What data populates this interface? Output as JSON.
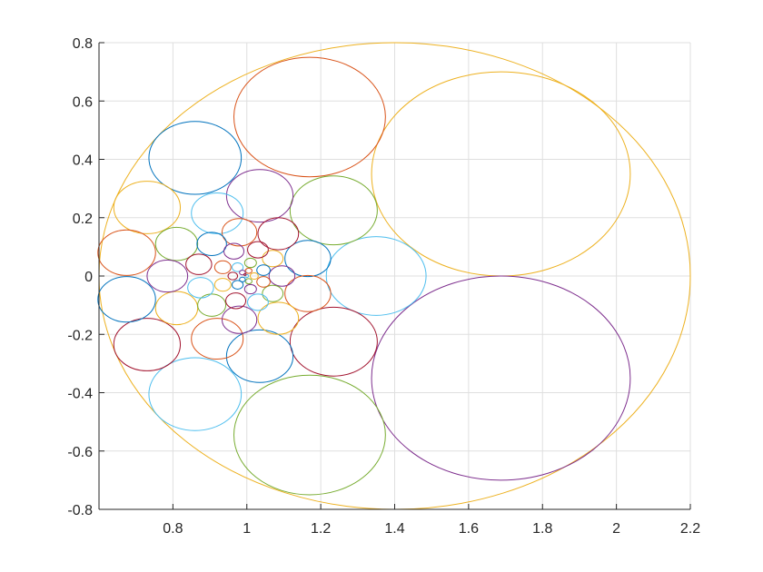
{
  "chart_data": {
    "type": "scatter",
    "title": "",
    "xlabel": "",
    "ylabel": "",
    "xlim": [
      0.6,
      2.2
    ],
    "ylim": [
      -0.8,
      0.8
    ],
    "grid": true,
    "x_ticks": [
      0.8,
      1,
      1.2,
      1.4,
      1.6,
      1.8,
      2,
      2.2
    ],
    "x_tick_labels": [
      "0.8",
      "1",
      "1.2",
      "1.4",
      "1.6",
      "1.8",
      "2",
      "2.2"
    ],
    "y_ticks": [
      -0.8,
      -0.6,
      -0.4,
      -0.2,
      0,
      0.2,
      0.4,
      0.6,
      0.8
    ],
    "y_tick_labels": [
      "-0.8",
      "-0.6",
      "-0.4",
      "-0.2",
      "0",
      "0.2",
      "0.4",
      "0.6",
      "0.8"
    ],
    "palette": [
      "#0072BD",
      "#D95319",
      "#EDB120",
      "#7E2F8E",
      "#77AC30",
      "#4DBEEE",
      "#A2142F"
    ],
    "circles": [
      {
        "cx": 1.4,
        "cy": 0.0,
        "r": 0.8,
        "color": "#EDB120"
      },
      {
        "cx": 1.6875,
        "cy": 0.35,
        "r": 0.35,
        "color": "#EDB120"
      },
      {
        "cx": 1.6875,
        "cy": -0.35,
        "r": 0.35,
        "color": "#7E2F8E"
      },
      {
        "cx": 1.17,
        "cy": 0.545,
        "r": 0.205,
        "color": "#D95319"
      },
      {
        "cx": 1.17,
        "cy": -0.545,
        "r": 0.205,
        "color": "#77AC30"
      },
      {
        "cx": 1.35,
        "cy": 0.0,
        "r": 0.135,
        "color": "#4DBEEE"
      },
      {
        "cx": 1.235,
        "cy": 0.225,
        "r": 0.118,
        "color": "#77AC30"
      },
      {
        "cx": 1.235,
        "cy": -0.225,
        "r": 0.118,
        "color": "#A2142F"
      },
      {
        "cx": 0.86,
        "cy": 0.405,
        "r": 0.125,
        "color": "#0072BD"
      },
      {
        "cx": 0.86,
        "cy": -0.405,
        "r": 0.125,
        "color": "#4DBEEE"
      },
      {
        "cx": 1.035,
        "cy": 0.275,
        "r": 0.09,
        "color": "#7E2F8E"
      },
      {
        "cx": 1.035,
        "cy": -0.275,
        "r": 0.09,
        "color": "#0072BD"
      },
      {
        "cx": 0.73,
        "cy": 0.235,
        "r": 0.09,
        "color": "#EDB120"
      },
      {
        "cx": 0.73,
        "cy": -0.235,
        "r": 0.09,
        "color": "#A2142F"
      },
      {
        "cx": 0.675,
        "cy": 0.08,
        "r": 0.078,
        "color": "#D95319"
      },
      {
        "cx": 0.675,
        "cy": -0.08,
        "r": 0.078,
        "color": "#0072BD"
      },
      {
        "cx": 0.92,
        "cy": 0.215,
        "r": 0.07,
        "color": "#4DBEEE"
      },
      {
        "cx": 0.92,
        "cy": -0.215,
        "r": 0.07,
        "color": "#D95319"
      },
      {
        "cx": 0.81,
        "cy": 0.11,
        "r": 0.057,
        "color": "#77AC30"
      },
      {
        "cx": 0.81,
        "cy": -0.11,
        "r": 0.057,
        "color": "#EDB120"
      },
      {
        "cx": 0.785,
        "cy": 0.0,
        "r": 0.055,
        "color": "#7E2F8E"
      },
      {
        "cx": 1.165,
        "cy": 0.06,
        "r": 0.062,
        "color": "#0072BD"
      },
      {
        "cx": 1.165,
        "cy": -0.06,
        "r": 0.062,
        "color": "#D95319"
      },
      {
        "cx": 1.085,
        "cy": 0.145,
        "r": 0.055,
        "color": "#A2142F"
      },
      {
        "cx": 1.085,
        "cy": -0.145,
        "r": 0.055,
        "color": "#EDB120"
      },
      {
        "cx": 0.98,
        "cy": 0.15,
        "r": 0.047,
        "color": "#D95319"
      },
      {
        "cx": 0.98,
        "cy": -0.15,
        "r": 0.047,
        "color": "#7E2F8E"
      },
      {
        "cx": 0.905,
        "cy": 0.11,
        "r": 0.04,
        "color": "#0072BD"
      },
      {
        "cx": 0.905,
        "cy": -0.1,
        "r": 0.038,
        "color": "#77AC30"
      },
      {
        "cx": 0.87,
        "cy": 0.04,
        "r": 0.035,
        "color": "#A2142F"
      },
      {
        "cx": 0.875,
        "cy": -0.04,
        "r": 0.035,
        "color": "#4DBEEE"
      },
      {
        "cx": 1.095,
        "cy": 0.0,
        "r": 0.035,
        "color": "#7E2F8E"
      },
      {
        "cx": 1.07,
        "cy": 0.06,
        "r": 0.028,
        "color": "#EDB120"
      },
      {
        "cx": 1.07,
        "cy": -0.06,
        "r": 0.028,
        "color": "#77AC30"
      },
      {
        "cx": 1.03,
        "cy": 0.09,
        "r": 0.028,
        "color": "#A2142F"
      },
      {
        "cx": 1.03,
        "cy": -0.09,
        "r": 0.028,
        "color": "#4DBEEE"
      },
      {
        "cx": 0.965,
        "cy": 0.085,
        "r": 0.027,
        "color": "#7E2F8E"
      },
      {
        "cx": 0.97,
        "cy": -0.085,
        "r": 0.027,
        "color": "#A2142F"
      },
      {
        "cx": 0.935,
        "cy": 0.03,
        "r": 0.022,
        "color": "#D95319"
      },
      {
        "cx": 0.935,
        "cy": -0.03,
        "r": 0.022,
        "color": "#EDB120"
      },
      {
        "cx": 1.045,
        "cy": 0.02,
        "r": 0.018,
        "color": "#0072BD"
      },
      {
        "cx": 1.045,
        "cy": -0.02,
        "r": 0.018,
        "color": "#D95319"
      },
      {
        "cx": 1.01,
        "cy": 0.045,
        "r": 0.016,
        "color": "#77AC30"
      },
      {
        "cx": 1.01,
        "cy": -0.045,
        "r": 0.016,
        "color": "#7E2F8E"
      },
      {
        "cx": 0.975,
        "cy": 0.03,
        "r": 0.015,
        "color": "#4DBEEE"
      },
      {
        "cx": 0.975,
        "cy": -0.03,
        "r": 0.015,
        "color": "#0072BD"
      },
      {
        "cx": 0.962,
        "cy": 0.0,
        "r": 0.013,
        "color": "#A2142F"
      },
      {
        "cx": 1.02,
        "cy": 0.0,
        "r": 0.011,
        "color": "#EDB120"
      },
      {
        "cx": 1.005,
        "cy": 0.018,
        "r": 0.009,
        "color": "#D95319"
      },
      {
        "cx": 1.005,
        "cy": -0.018,
        "r": 0.009,
        "color": "#77AC30"
      },
      {
        "cx": 0.988,
        "cy": 0.012,
        "r": 0.008,
        "color": "#7E2F8E"
      },
      {
        "cx": 0.988,
        "cy": -0.012,
        "r": 0.008,
        "color": "#0072BD"
      },
      {
        "cx": 1.0,
        "cy": 0.0,
        "r": 0.005,
        "color": "#4DBEEE"
      },
      {
        "cx": 0.995,
        "cy": 0.005,
        "r": 0.003,
        "color": "#A2142F"
      }
    ]
  }
}
